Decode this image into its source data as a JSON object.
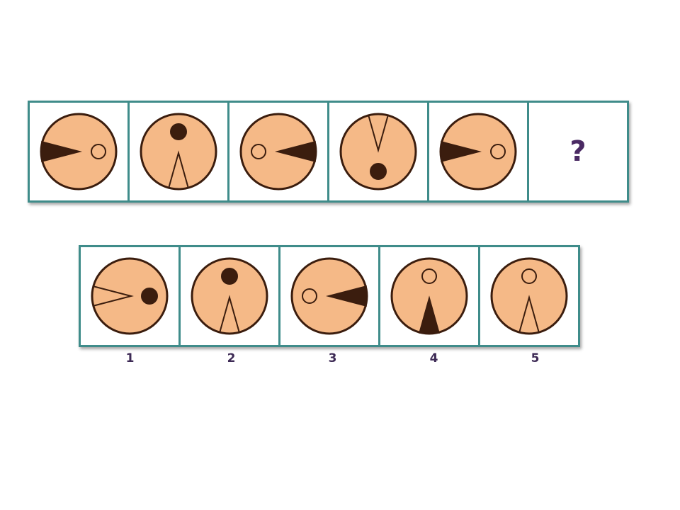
{
  "colors": {
    "frame_border": "#3f8c8a",
    "circle_fill": "#f5b987",
    "circle_stroke": "#3b1d0e",
    "mark_fill": "#3b1d0e",
    "question_color": "#4a2a63"
  },
  "sequence": [
    {
      "wedge": {
        "at": "left",
        "points": "right",
        "filled": true
      },
      "dot": {
        "at": "right",
        "filled": false
      }
    },
    {
      "wedge": {
        "at": "bottom",
        "points": "up",
        "filled": false
      },
      "dot": {
        "at": "top",
        "filled": true
      }
    },
    {
      "wedge": {
        "at": "right",
        "points": "left",
        "filled": true
      },
      "dot": {
        "at": "left",
        "filled": false
      }
    },
    {
      "wedge": {
        "at": "top",
        "points": "down",
        "filled": false
      },
      "dot": {
        "at": "bottom",
        "filled": true
      }
    },
    {
      "wedge": {
        "at": "left",
        "points": "right",
        "filled": true
      },
      "dot": {
        "at": "right",
        "filled": false
      }
    }
  ],
  "question_mark": "?",
  "options": [
    {
      "label": "1",
      "wedge": {
        "at": "left",
        "points": "right",
        "filled": false
      },
      "dot": {
        "at": "right",
        "filled": true
      }
    },
    {
      "label": "2",
      "wedge": {
        "at": "bottom",
        "points": "up",
        "filled": false
      },
      "dot": {
        "at": "top",
        "filled": true
      }
    },
    {
      "label": "3",
      "wedge": {
        "at": "right",
        "points": "left",
        "filled": true
      },
      "dot": {
        "at": "left",
        "filled": false
      }
    },
    {
      "label": "4",
      "wedge": {
        "at": "bottom",
        "points": "up",
        "filled": true
      },
      "dot": {
        "at": "top",
        "filled": false
      }
    },
    {
      "label": "5",
      "wedge": {
        "at": "bottom",
        "points": "up",
        "filled": false
      },
      "dot": {
        "at": "top",
        "filled": false
      }
    }
  ]
}
